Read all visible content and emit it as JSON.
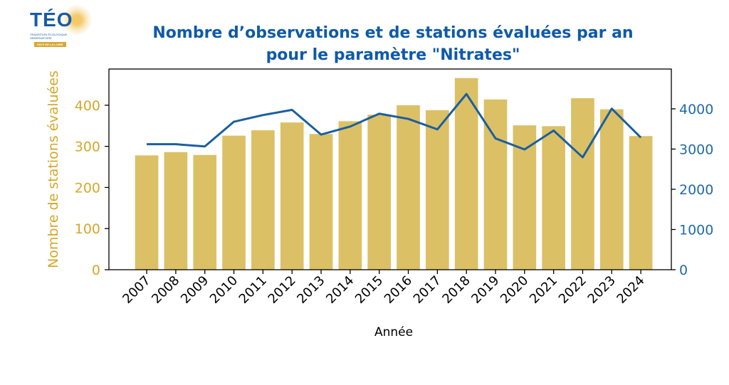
{
  "logo": {
    "name": "TÉO",
    "subtitle": "TRANSITION ÉCOLOGIQUE OBSERVATOIRE",
    "region": "PAYS DE LA LOIRE"
  },
  "chart_data": {
    "type": "bar+line",
    "title_lines": [
      "Nombre d’observations et de stations évaluées par an",
      "pour le paramètre \"Nitrates\""
    ],
    "xlabel": "Année",
    "ylabel_left": "Nombre de stations évaluées",
    "ylabel_right": "",
    "categories": [
      "2007",
      "2008",
      "2009",
      "2010",
      "2011",
      "2012",
      "2013",
      "2014",
      "2015",
      "2016",
      "2017",
      "2018",
      "2019",
      "2020",
      "2021",
      "2022",
      "2023",
      "2024"
    ],
    "series": [
      {
        "type": "bar",
        "axis": "left",
        "color": "#dcc065",
        "values": [
          278,
          286,
          279,
          326,
          339,
          358,
          330,
          361,
          377,
          400,
          388,
          466,
          414,
          351,
          349,
          417,
          390,
          325
        ]
      },
      {
        "type": "line",
        "axis": "right",
        "color": "#1a5fa0",
        "values": [
          3120,
          3120,
          3065,
          3680,
          3845,
          3975,
          3360,
          3560,
          3880,
          3750,
          3490,
          4370,
          3265,
          2990,
          3460,
          2795,
          4005,
          3285
        ]
      }
    ],
    "ylim_left": [
      0,
      488
    ],
    "ylim_right": [
      0,
      4990
    ],
    "yticks_left": [
      0,
      100,
      200,
      300,
      400
    ],
    "yticks_right": [
      0,
      1000,
      2000,
      3000,
      4000
    ],
    "grid": false,
    "colors": {
      "title": "#0f5aa8",
      "left_axis": "#d4a829",
      "right_axis": "#1f6bb0",
      "axis": "#000000"
    }
  }
}
